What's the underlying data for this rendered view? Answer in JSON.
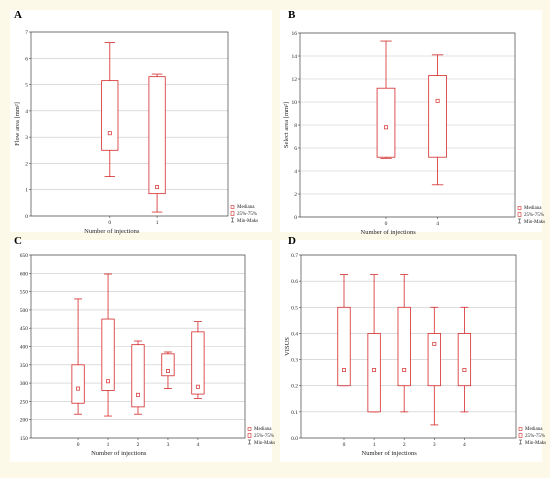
{
  "colors": {
    "box": "#d42a2a",
    "grid": "#c8c8c8",
    "axis": "#444444",
    "background": "#fdf9e9",
    "panel": "#ffffff"
  },
  "legend": {
    "median": "Mediana",
    "iqr": "25%-75%",
    "range": "Min-Maks"
  },
  "chart_data": [
    {
      "panel": "A",
      "type": "box",
      "xlabel": "Number of injections",
      "ylabel": "Flow area [mm²]",
      "ylim": [
        0,
        7
      ],
      "yticks": [
        0,
        1,
        2,
        3,
        4,
        5,
        6,
        7
      ],
      "categories": [
        "0",
        "1"
      ],
      "boxes": [
        {
          "category": "0",
          "min": 1.5,
          "q1": 2.5,
          "median": 3.15,
          "q3": 5.15,
          "max": 6.6
        },
        {
          "category": "1",
          "min": 0.15,
          "q1": 0.85,
          "median": 1.1,
          "q3": 5.3,
          "max": 5.4
        }
      ]
    },
    {
      "panel": "B",
      "type": "box",
      "xlabel": "Number of injections",
      "ylabel": "Select area [mm²]",
      "ylim": [
        0,
        16
      ],
      "yticks": [
        0,
        2,
        4,
        6,
        8,
        10,
        12,
        14,
        16
      ],
      "categories": [
        "0",
        "4"
      ],
      "boxes": [
        {
          "category": "0",
          "min": 5.1,
          "q1": 5.2,
          "median": 7.8,
          "q3": 11.2,
          "max": 15.3
        },
        {
          "category": "4",
          "min": 2.8,
          "q1": 5.2,
          "median": 10.1,
          "q3": 12.3,
          "max": 14.1
        }
      ]
    },
    {
      "panel": "C",
      "type": "box",
      "xlabel": "Number of injections",
      "ylabel": "",
      "ylim": [
        150,
        650
      ],
      "yticks": [
        150,
        200,
        250,
        300,
        350,
        400,
        450,
        500,
        550,
        600,
        650
      ],
      "categories": [
        "0",
        "1",
        "2",
        "3",
        "4"
      ],
      "boxes": [
        {
          "category": "0",
          "min": 215,
          "q1": 245,
          "median": 285,
          "q3": 350,
          "max": 530
        },
        {
          "category": "1",
          "min": 210,
          "q1": 280,
          "median": 305,
          "q3": 475,
          "max": 598
        },
        {
          "category": "2",
          "min": 215,
          "q1": 235,
          "median": 268,
          "q3": 405,
          "max": 415
        },
        {
          "category": "3",
          "min": 285,
          "q1": 320,
          "median": 333,
          "q3": 380,
          "max": 385
        },
        {
          "category": "4",
          "min": 258,
          "q1": 270,
          "median": 290,
          "q3": 440,
          "max": 468
        }
      ]
    },
    {
      "panel": "D",
      "type": "box",
      "xlabel": "Number of injections",
      "ylabel": "VISUS",
      "ylim": [
        0,
        0.7
      ],
      "yticks": [
        0.0,
        0.1,
        0.2,
        0.3,
        0.4,
        0.5,
        0.6,
        0.7
      ],
      "categories": [
        "0",
        "1",
        "2",
        "3",
        "4"
      ],
      "boxes": [
        {
          "category": "0",
          "min": 0.2,
          "q1": 0.2,
          "median": 0.26,
          "q3": 0.5,
          "max": 0.625
        },
        {
          "category": "1",
          "min": 0.1,
          "q1": 0.1,
          "median": 0.26,
          "q3": 0.4,
          "max": 0.625
        },
        {
          "category": "2",
          "min": 0.1,
          "q1": 0.2,
          "median": 0.26,
          "q3": 0.5,
          "max": 0.625
        },
        {
          "category": "3",
          "min": 0.05,
          "q1": 0.2,
          "median": 0.36,
          "q3": 0.4,
          "max": 0.5
        },
        {
          "category": "4",
          "min": 0.1,
          "q1": 0.2,
          "median": 0.26,
          "q3": 0.4,
          "max": 0.5
        }
      ]
    }
  ]
}
